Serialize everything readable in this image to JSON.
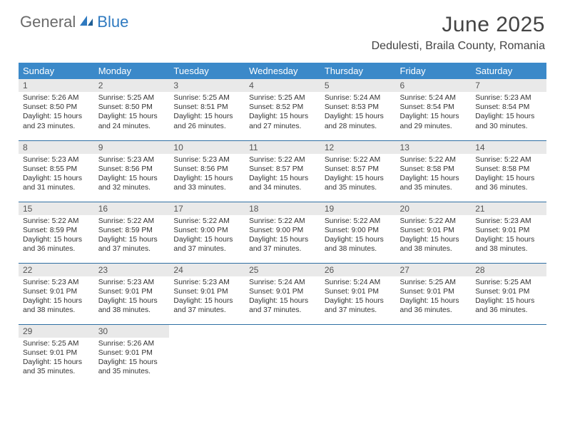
{
  "colors": {
    "header_bg": "#3b89c9",
    "header_text": "#ffffff",
    "daynum_bg": "#e9e9e9",
    "daynum_text": "#555555",
    "cell_border": "#2f6fa3",
    "body_text": "#333333",
    "logo_gray": "#6a6a6a",
    "logo_blue": "#2f7ac0"
  },
  "typography": {
    "title_fontsize": 30,
    "location_fontsize": 16,
    "weekday_fontsize": 13,
    "daynum_fontsize": 12,
    "body_fontsize": 10.3
  },
  "logo": {
    "part1": "General",
    "part2": "Blue"
  },
  "title": "June 2025",
  "location": "Dedulesti, Braila County, Romania",
  "weekdays": [
    "Sunday",
    "Monday",
    "Tuesday",
    "Wednesday",
    "Thursday",
    "Friday",
    "Saturday"
  ],
  "weeks": [
    [
      {
        "n": "1",
        "sr": "Sunrise: 5:26 AM",
        "ss": "Sunset: 8:50 PM",
        "d1": "Daylight: 15 hours",
        "d2": "and 23 minutes."
      },
      {
        "n": "2",
        "sr": "Sunrise: 5:25 AM",
        "ss": "Sunset: 8:50 PM",
        "d1": "Daylight: 15 hours",
        "d2": "and 24 minutes."
      },
      {
        "n": "3",
        "sr": "Sunrise: 5:25 AM",
        "ss": "Sunset: 8:51 PM",
        "d1": "Daylight: 15 hours",
        "d2": "and 26 minutes."
      },
      {
        "n": "4",
        "sr": "Sunrise: 5:25 AM",
        "ss": "Sunset: 8:52 PM",
        "d1": "Daylight: 15 hours",
        "d2": "and 27 minutes."
      },
      {
        "n": "5",
        "sr": "Sunrise: 5:24 AM",
        "ss": "Sunset: 8:53 PM",
        "d1": "Daylight: 15 hours",
        "d2": "and 28 minutes."
      },
      {
        "n": "6",
        "sr": "Sunrise: 5:24 AM",
        "ss": "Sunset: 8:54 PM",
        "d1": "Daylight: 15 hours",
        "d2": "and 29 minutes."
      },
      {
        "n": "7",
        "sr": "Sunrise: 5:23 AM",
        "ss": "Sunset: 8:54 PM",
        "d1": "Daylight: 15 hours",
        "d2": "and 30 minutes."
      }
    ],
    [
      {
        "n": "8",
        "sr": "Sunrise: 5:23 AM",
        "ss": "Sunset: 8:55 PM",
        "d1": "Daylight: 15 hours",
        "d2": "and 31 minutes."
      },
      {
        "n": "9",
        "sr": "Sunrise: 5:23 AM",
        "ss": "Sunset: 8:56 PM",
        "d1": "Daylight: 15 hours",
        "d2": "and 32 minutes."
      },
      {
        "n": "10",
        "sr": "Sunrise: 5:23 AM",
        "ss": "Sunset: 8:56 PM",
        "d1": "Daylight: 15 hours",
        "d2": "and 33 minutes."
      },
      {
        "n": "11",
        "sr": "Sunrise: 5:22 AM",
        "ss": "Sunset: 8:57 PM",
        "d1": "Daylight: 15 hours",
        "d2": "and 34 minutes."
      },
      {
        "n": "12",
        "sr": "Sunrise: 5:22 AM",
        "ss": "Sunset: 8:57 PM",
        "d1": "Daylight: 15 hours",
        "d2": "and 35 minutes."
      },
      {
        "n": "13",
        "sr": "Sunrise: 5:22 AM",
        "ss": "Sunset: 8:58 PM",
        "d1": "Daylight: 15 hours",
        "d2": "and 35 minutes."
      },
      {
        "n": "14",
        "sr": "Sunrise: 5:22 AM",
        "ss": "Sunset: 8:58 PM",
        "d1": "Daylight: 15 hours",
        "d2": "and 36 minutes."
      }
    ],
    [
      {
        "n": "15",
        "sr": "Sunrise: 5:22 AM",
        "ss": "Sunset: 8:59 PM",
        "d1": "Daylight: 15 hours",
        "d2": "and 36 minutes."
      },
      {
        "n": "16",
        "sr": "Sunrise: 5:22 AM",
        "ss": "Sunset: 8:59 PM",
        "d1": "Daylight: 15 hours",
        "d2": "and 37 minutes."
      },
      {
        "n": "17",
        "sr": "Sunrise: 5:22 AM",
        "ss": "Sunset: 9:00 PM",
        "d1": "Daylight: 15 hours",
        "d2": "and 37 minutes."
      },
      {
        "n": "18",
        "sr": "Sunrise: 5:22 AM",
        "ss": "Sunset: 9:00 PM",
        "d1": "Daylight: 15 hours",
        "d2": "and 37 minutes."
      },
      {
        "n": "19",
        "sr": "Sunrise: 5:22 AM",
        "ss": "Sunset: 9:00 PM",
        "d1": "Daylight: 15 hours",
        "d2": "and 38 minutes."
      },
      {
        "n": "20",
        "sr": "Sunrise: 5:22 AM",
        "ss": "Sunset: 9:01 PM",
        "d1": "Daylight: 15 hours",
        "d2": "and 38 minutes."
      },
      {
        "n": "21",
        "sr": "Sunrise: 5:23 AM",
        "ss": "Sunset: 9:01 PM",
        "d1": "Daylight: 15 hours",
        "d2": "and 38 minutes."
      }
    ],
    [
      {
        "n": "22",
        "sr": "Sunrise: 5:23 AM",
        "ss": "Sunset: 9:01 PM",
        "d1": "Daylight: 15 hours",
        "d2": "and 38 minutes."
      },
      {
        "n": "23",
        "sr": "Sunrise: 5:23 AM",
        "ss": "Sunset: 9:01 PM",
        "d1": "Daylight: 15 hours",
        "d2": "and 38 minutes."
      },
      {
        "n": "24",
        "sr": "Sunrise: 5:23 AM",
        "ss": "Sunset: 9:01 PM",
        "d1": "Daylight: 15 hours",
        "d2": "and 37 minutes."
      },
      {
        "n": "25",
        "sr": "Sunrise: 5:24 AM",
        "ss": "Sunset: 9:01 PM",
        "d1": "Daylight: 15 hours",
        "d2": "and 37 minutes."
      },
      {
        "n": "26",
        "sr": "Sunrise: 5:24 AM",
        "ss": "Sunset: 9:01 PM",
        "d1": "Daylight: 15 hours",
        "d2": "and 37 minutes."
      },
      {
        "n": "27",
        "sr": "Sunrise: 5:25 AM",
        "ss": "Sunset: 9:01 PM",
        "d1": "Daylight: 15 hours",
        "d2": "and 36 minutes."
      },
      {
        "n": "28",
        "sr": "Sunrise: 5:25 AM",
        "ss": "Sunset: 9:01 PM",
        "d1": "Daylight: 15 hours",
        "d2": "and 36 minutes."
      }
    ],
    [
      {
        "n": "29",
        "sr": "Sunrise: 5:25 AM",
        "ss": "Sunset: 9:01 PM",
        "d1": "Daylight: 15 hours",
        "d2": "and 35 minutes."
      },
      {
        "n": "30",
        "sr": "Sunrise: 5:26 AM",
        "ss": "Sunset: 9:01 PM",
        "d1": "Daylight: 15 hours",
        "d2": "and 35 minutes."
      },
      null,
      null,
      null,
      null,
      null
    ]
  ]
}
